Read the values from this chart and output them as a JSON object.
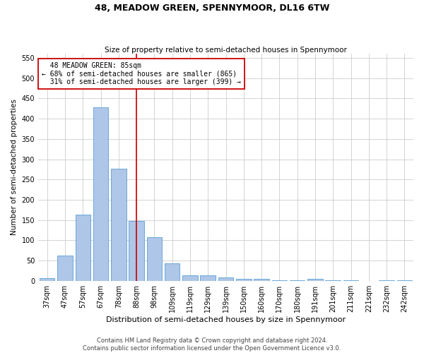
{
  "title": "48, MEADOW GREEN, SPENNYMOOR, DL16 6TW",
  "subtitle": "Size of property relative to semi-detached houses in Spennymoor",
  "xlabel": "Distribution of semi-detached houses by size in Spennymoor",
  "ylabel": "Number of semi-detached properties",
  "bins": [
    "37sqm",
    "47sqm",
    "57sqm",
    "67sqm",
    "78sqm",
    "88sqm",
    "98sqm",
    "109sqm",
    "119sqm",
    "129sqm",
    "139sqm",
    "150sqm",
    "160sqm",
    "170sqm",
    "180sqm",
    "191sqm",
    "201sqm",
    "211sqm",
    "221sqm",
    "232sqm",
    "242sqm"
  ],
  "values": [
    7,
    62,
    163,
    428,
    276,
    148,
    107,
    43,
    14,
    13,
    9,
    4,
    4,
    1,
    1,
    5,
    1,
    1,
    0,
    2,
    1
  ],
  "bar_color": "#aec6e8",
  "bar_edge_color": "#5a9fd4",
  "subject_label": "48 MEADOW GREEN: 85sqm",
  "pct_smaller": 68,
  "pct_smaller_n": 865,
  "pct_larger": 31,
  "pct_larger_n": 399,
  "annotation_box_color": "#ffffff",
  "annotation_box_edge": "#cc0000",
  "vline_color": "#cc0000",
  "grid_color": "#cccccc",
  "footer1": "Contains HM Land Registry data © Crown copyright and database right 2024.",
  "footer2": "Contains public sector information licensed under the Open Government Licence v3.0.",
  "ylim": [
    0,
    560
  ],
  "yticks": [
    0,
    50,
    100,
    150,
    200,
    250,
    300,
    350,
    400,
    450,
    500,
    550
  ],
  "title_fontsize": 9,
  "subtitle_fontsize": 7.5,
  "xlabel_fontsize": 8,
  "ylabel_fontsize": 7.5,
  "tick_fontsize": 7,
  "annotation_fontsize": 7,
  "footer_fontsize": 6
}
